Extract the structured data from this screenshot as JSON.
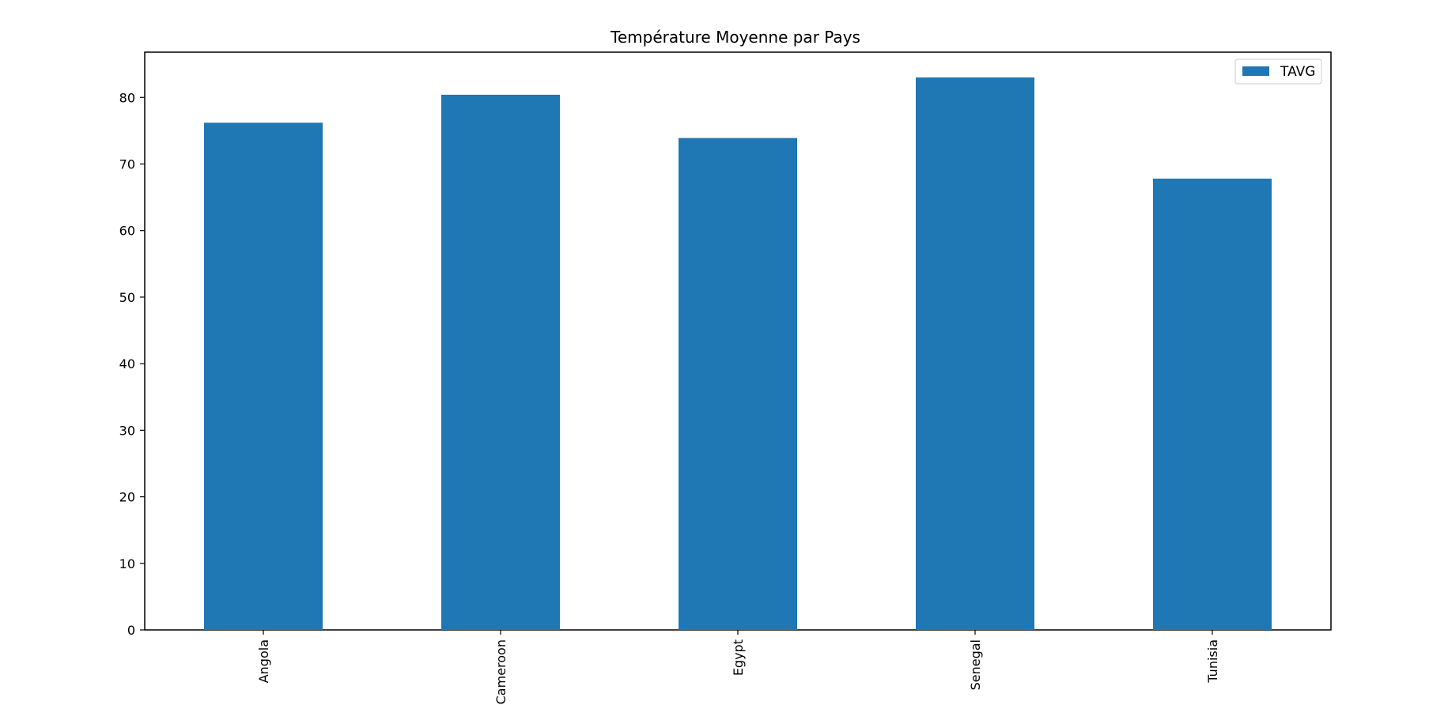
{
  "chart_data": {
    "type": "bar",
    "title": "Température Moyenne par Pays",
    "xlabel": "",
    "ylabel": "",
    "categories": [
      "Angola",
      "Cameroon",
      "Egypt",
      "Senegal",
      "Tunisia"
    ],
    "series": [
      {
        "name": "TAVG",
        "color": "#1f77b4",
        "values": [
          76.2,
          80.4,
          73.9,
          83.0,
          67.8
        ]
      }
    ],
    "ylim": [
      0,
      86.8
    ],
    "yticks": [
      0,
      10,
      20,
      30,
      40,
      50,
      60,
      70,
      80
    ],
    "xtick_rotation": "vertical",
    "grid": false,
    "legend_position": "top-right"
  }
}
